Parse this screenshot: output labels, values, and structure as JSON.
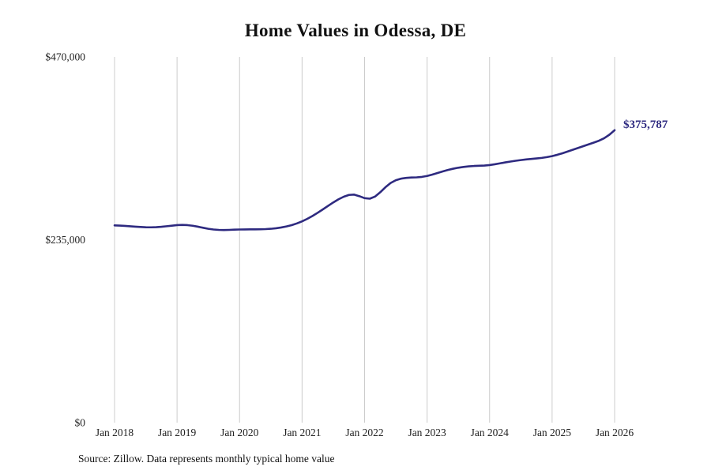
{
  "title": "Home Values in Odessa, DE",
  "source_note": "Source: Zillow. Data represents monthly typical home value",
  "end_label": "$375,787",
  "colors": {
    "line": "#2e2a80",
    "grid": "#cccccc",
    "tick_label": "#222222",
    "end_label": "#2e2a80",
    "title": "#111111",
    "background": "#ffffff"
  },
  "chart_data": {
    "type": "line",
    "title": "Home Values in Odessa, DE",
    "x_tick_labels": [
      "Jan 2018",
      "Jan 2019",
      "Jan 2020",
      "Jan 2021",
      "Jan 2022",
      "Jan 2023",
      "Jan 2024",
      "Jan 2025",
      "Jan 2026"
    ],
    "y_ticks": [
      {
        "value": 0,
        "label": "$0"
      },
      {
        "value": 235000,
        "label": "$235,000"
      },
      {
        "value": 470000,
        "label": "$470,000"
      }
    ],
    "ylim": [
      0,
      470000
    ],
    "grid": "vertical-only",
    "legend": "none",
    "x_frequency": "monthly",
    "series": [
      {
        "name": "Typical home value",
        "values": [
          253500,
          253200,
          252800,
          252300,
          251800,
          251400,
          251100,
          251000,
          251200,
          251700,
          252400,
          253100,
          253800,
          254100,
          253800,
          253000,
          251800,
          250400,
          249100,
          248200,
          247700,
          247500,
          247700,
          248000,
          248200,
          248300,
          248400,
          248400,
          248500,
          248700,
          249100,
          249800,
          250800,
          252100,
          253800,
          256000,
          258700,
          261900,
          265600,
          269700,
          274100,
          278600,
          283000,
          287000,
          290300,
          292600,
          293000,
          291000,
          288500,
          287800,
          290500,
          296000,
          302500,
          308000,
          311500,
          313500,
          314500,
          315000,
          315200,
          315800,
          317000,
          318800,
          320800,
          322800,
          324700,
          326300,
          327600,
          328600,
          329300,
          329800,
          330100,
          330400,
          331000,
          332000,
          333200,
          334400,
          335500,
          336500,
          337400,
          338200,
          338900,
          339500,
          340200,
          341200,
          342500,
          344200,
          346200,
          348400,
          350700,
          353000,
          355300,
          357600,
          359900,
          362300,
          365500,
          370000,
          375787
        ]
      }
    ],
    "end_value": 375787,
    "end_value_label": "$375,787"
  }
}
